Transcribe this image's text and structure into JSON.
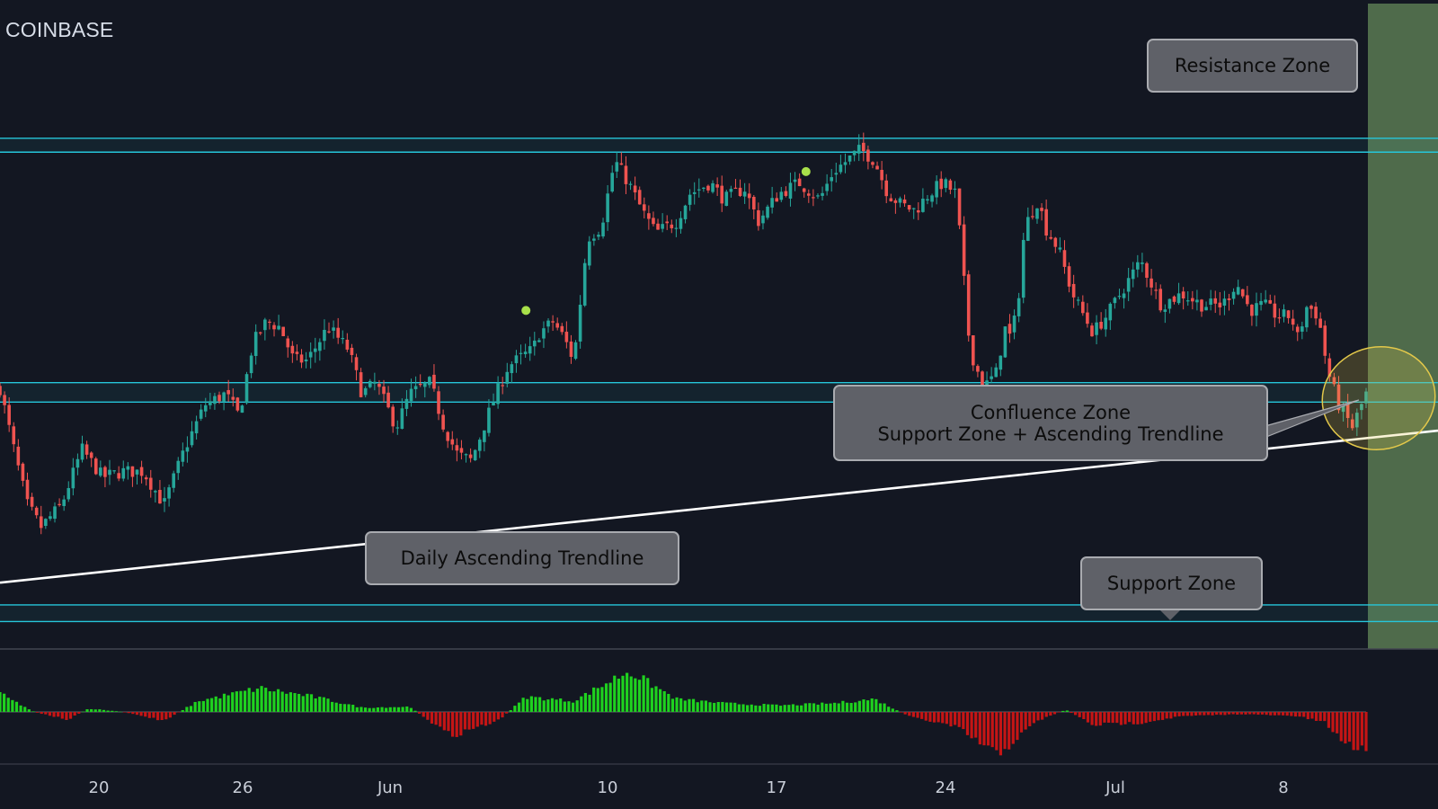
{
  "header": {
    "exchange": "COINBASE"
  },
  "annotations": {
    "resistance_zone": "Resistance Zone",
    "confluence_title": "Confluence Zone",
    "confluence_subtitle": "Support Zone + Ascending Trendline",
    "daily_trendline": "Daily Ascending Trendline",
    "support_zone": "Support Zone"
  },
  "colors": {
    "background": "#131722",
    "bull_candle": "#26a69a",
    "bear_candle": "#ef5350",
    "zone_line": "#26c6da",
    "trendline": "#ffffff",
    "forecast_area": "#4f6b4b",
    "hist_positive": "#1fd21f",
    "hist_negative": "#c51515",
    "highlight_ellipse": "#e3c84a"
  },
  "chart_data": {
    "type": "candlestick",
    "x_ticks": [
      "20",
      "26",
      "Jun",
      "10",
      "17",
      "24",
      "Jul",
      "8"
    ],
    "key_levels": [
      {
        "zone": "resistance",
        "bounds": [
          0.9,
          0.875
        ]
      },
      {
        "zone": "confluence-support",
        "bounds": [
          0.46,
          0.425
        ]
      },
      {
        "zone": "support",
        "bounds": [
          0.06,
          0.03
        ]
      }
    ],
    "trendline": {
      "from": [
        0.0,
        0.1
      ],
      "to": [
        1.0,
        0.36
      ]
    },
    "price_path": [
      [
        0.0,
        0.45
      ],
      [
        0.012,
        0.32
      ],
      [
        0.02,
        0.24
      ],
      [
        0.03,
        0.2
      ],
      [
        0.045,
        0.24
      ],
      [
        0.06,
        0.34
      ],
      [
        0.075,
        0.29
      ],
      [
        0.09,
        0.3
      ],
      [
        0.105,
        0.3
      ],
      [
        0.12,
        0.24
      ],
      [
        0.135,
        0.34
      ],
      [
        0.15,
        0.42
      ],
      [
        0.165,
        0.44
      ],
      [
        0.175,
        0.4
      ],
      [
        0.185,
        0.53
      ],
      [
        0.195,
        0.57
      ],
      [
        0.205,
        0.56
      ],
      [
        0.215,
        0.5
      ],
      [
        0.225,
        0.5
      ],
      [
        0.24,
        0.56
      ],
      [
        0.255,
        0.52
      ],
      [
        0.265,
        0.44
      ],
      [
        0.275,
        0.46
      ],
      [
        0.29,
        0.38
      ],
      [
        0.3,
        0.44
      ],
      [
        0.315,
        0.46
      ],
      [
        0.325,
        0.38
      ],
      [
        0.335,
        0.33
      ],
      [
        0.345,
        0.32
      ],
      [
        0.36,
        0.42
      ],
      [
        0.372,
        0.49
      ],
      [
        0.39,
        0.52
      ],
      [
        0.395,
        0.55
      ],
      [
        0.405,
        0.57
      ],
      [
        0.413,
        0.54
      ],
      [
        0.42,
        0.5
      ],
      [
        0.43,
        0.72
      ],
      [
        0.44,
        0.74
      ],
      [
        0.45,
        0.86
      ],
      [
        0.46,
        0.82
      ],
      [
        0.47,
        0.77
      ],
      [
        0.48,
        0.73
      ],
      [
        0.495,
        0.75
      ],
      [
        0.505,
        0.8
      ],
      [
        0.52,
        0.82
      ],
      [
        0.53,
        0.79
      ],
      [
        0.545,
        0.81
      ],
      [
        0.555,
        0.75
      ],
      [
        0.57,
        0.8
      ],
      [
        0.585,
        0.82
      ],
      [
        0.6,
        0.79
      ],
      [
        0.61,
        0.84
      ],
      [
        0.62,
        0.86
      ],
      [
        0.63,
        0.88
      ],
      [
        0.64,
        0.86
      ],
      [
        0.65,
        0.8
      ],
      [
        0.66,
        0.78
      ],
      [
        0.67,
        0.77
      ],
      [
        0.68,
        0.8
      ],
      [
        0.69,
        0.82
      ],
      [
        0.7,
        0.8
      ],
      [
        0.705,
        0.66
      ],
      [
        0.71,
        0.52
      ],
      [
        0.72,
        0.45
      ],
      [
        0.73,
        0.48
      ],
      [
        0.735,
        0.56
      ],
      [
        0.74,
        0.54
      ],
      [
        0.745,
        0.6
      ],
      [
        0.75,
        0.74
      ],
      [
        0.76,
        0.79
      ],
      [
        0.765,
        0.74
      ],
      [
        0.775,
        0.7
      ],
      [
        0.785,
        0.62
      ],
      [
        0.8,
        0.55
      ],
      [
        0.81,
        0.58
      ],
      [
        0.825,
        0.64
      ],
      [
        0.835,
        0.68
      ],
      [
        0.85,
        0.6
      ],
      [
        0.865,
        0.62
      ],
      [
        0.88,
        0.6
      ],
      [
        0.895,
        0.6
      ],
      [
        0.905,
        0.64
      ],
      [
        0.915,
        0.59
      ],
      [
        0.925,
        0.6
      ],
      [
        0.935,
        0.58
      ],
      [
        0.945,
        0.58
      ],
      [
        0.95,
        0.54
      ],
      [
        0.957,
        0.6
      ],
      [
        0.965,
        0.58
      ],
      [
        0.972,
        0.48
      ],
      [
        0.98,
        0.42
      ],
      [
        0.99,
        0.38
      ],
      [
        1.0,
        0.44
      ]
    ],
    "markers": [
      [
        0.385,
        0.59
      ],
      [
        0.59,
        0.84
      ]
    ],
    "histogram": [
      [
        0.0,
        0.42
      ],
      [
        0.025,
        0.0
      ],
      [
        0.05,
        -0.18
      ],
      [
        0.065,
        0.08
      ],
      [
        0.09,
        0.0
      ],
      [
        0.12,
        -0.2
      ],
      [
        0.145,
        0.25
      ],
      [
        0.19,
        0.55
      ],
      [
        0.23,
        0.35
      ],
      [
        0.265,
        0.1
      ],
      [
        0.3,
        0.12
      ],
      [
        0.33,
        -0.55
      ],
      [
        0.365,
        -0.2
      ],
      [
        0.385,
        0.35
      ],
      [
        0.42,
        0.25
      ],
      [
        0.46,
        0.95
      ],
      [
        0.495,
        0.3
      ],
      [
        0.53,
        0.2
      ],
      [
        0.57,
        0.15
      ],
      [
        0.61,
        0.2
      ],
      [
        0.64,
        0.3
      ],
      [
        0.665,
        -0.1
      ],
      [
        0.7,
        -0.35
      ],
      [
        0.73,
        -1.0
      ],
      [
        0.76,
        -0.2
      ],
      [
        0.78,
        0.05
      ],
      [
        0.8,
        -0.3
      ],
      [
        0.835,
        -0.25
      ],
      [
        0.865,
        -0.1
      ],
      [
        0.91,
        -0.05
      ],
      [
        0.95,
        -0.1
      ],
      [
        0.97,
        -0.25
      ],
      [
        0.985,
        -0.75
      ],
      [
        1.0,
        -0.85
      ]
    ]
  }
}
